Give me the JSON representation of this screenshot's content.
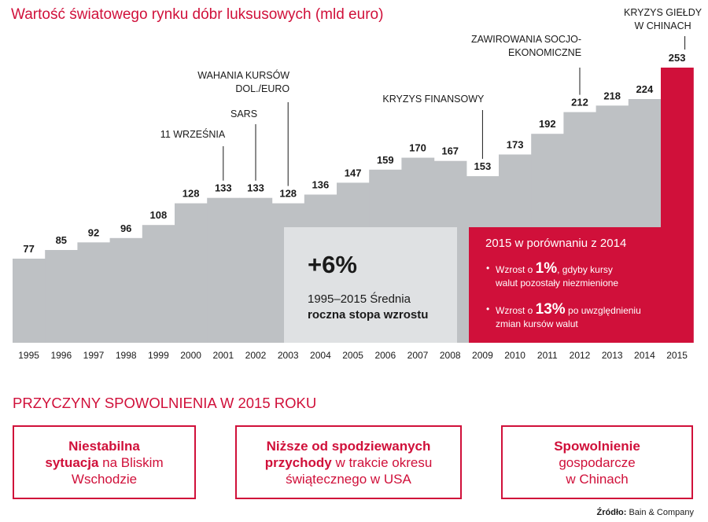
{
  "header": {
    "title": "Wartość światowego rynku dóbr luksusowych (mld euro)"
  },
  "chart_data": {
    "type": "area",
    "title": "Wartość światowego rynku dóbr luksusowych (mld euro)",
    "x": [
      "1995",
      "1996",
      "1997",
      "1998",
      "1999",
      "2000",
      "2001",
      "2002",
      "2003",
      "2004",
      "2005",
      "2006",
      "2007",
      "2008",
      "2009",
      "2010",
      "2011",
      "2012",
      "2013",
      "2014",
      "2015"
    ],
    "values": [
      77,
      85,
      92,
      96,
      108,
      128,
      133,
      133,
      128,
      136,
      147,
      159,
      170,
      167,
      153,
      173,
      192,
      212,
      218,
      224,
      253
    ],
    "highlight_index": 20,
    "colors": {
      "bars": "#bec1c4",
      "highlight": "#d0103a",
      "accent": "#d0103a"
    },
    "annotations": [
      {
        "year": "2001",
        "lines": [
          "11 WRZEŚNIA"
        ]
      },
      {
        "year": "2002",
        "lines": [
          "SARS"
        ]
      },
      {
        "year": "2003",
        "lines": [
          "WAHANIA KURSÓW",
          "DOL./EURO"
        ]
      },
      {
        "year": "2009",
        "lines": [
          "KRYZYS FINANSOWY"
        ]
      },
      {
        "year": "2012",
        "lines": [
          "ZAWIROWANIA SOCJO-",
          "EKONOMICZNE"
        ]
      },
      {
        "year": "2015",
        "lines": [
          "KRYZYS GIEŁDY",
          "W CHINACH"
        ]
      }
    ]
  },
  "average_box": {
    "value": "+6%",
    "line1": "1995–2015 Średnia",
    "line2": "roczna stopa wzrostu"
  },
  "comparison_box": {
    "title": "2015 w porównaniu z 2014",
    "bullet": "•",
    "item1": {
      "prefix": "Wzrost o ",
      "value": "1%",
      "suffix": ", gdyby kursy",
      "line2": "walut pozostały niezmienione"
    },
    "item2": {
      "prefix": "Wzrost o ",
      "value": "13%",
      "suffix": " po uwzględnieniu",
      "line2": "zmian kursów walut"
    }
  },
  "reasons": {
    "title": "PRZYCZYNY SPOWOLNIENIA W 2015 ROKU",
    "items": [
      {
        "bold1": "Niestabilna",
        "bold2": "sytuacja",
        "rest2": " na Bliskim",
        "line3": "Wschodzie"
      },
      {
        "bold1": "Niższe od spodziewanych",
        "bold2": "przychody",
        "rest2": " w trakcie okresu",
        "line3": "świątecznego w USA"
      },
      {
        "bold1": "Spowolnienie",
        "line2": "gospodarcze",
        "line3": "w Chinach"
      }
    ]
  },
  "source": {
    "label": "Źródło:",
    "value": " Bain & Company"
  }
}
